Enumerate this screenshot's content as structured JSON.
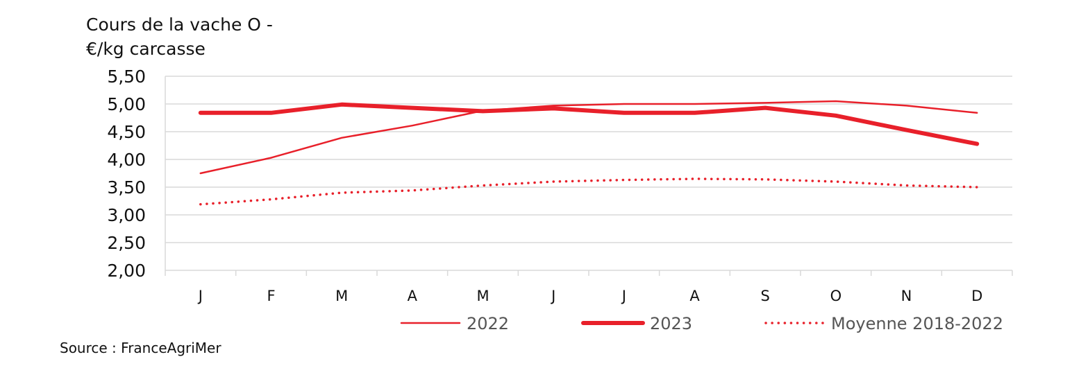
{
  "chart_data": {
    "type": "line",
    "title": "",
    "ylabel_lines": [
      "Cours de la vache O -",
      "€/kg carcasse"
    ],
    "xlabel": "",
    "categories": [
      "J",
      "F",
      "M",
      "A",
      "M",
      "J",
      "J",
      "A",
      "S",
      "O",
      "N",
      "D"
    ],
    "ylim": [
      2.0,
      5.5
    ],
    "yticks": [
      2.0,
      2.5,
      3.0,
      3.5,
      4.0,
      4.5,
      5.0,
      5.5
    ],
    "ytick_labels": [
      "2,00",
      "2,50",
      "3,00",
      "3,50",
      "4,00",
      "4,50",
      "5,00",
      "5,50"
    ],
    "grid": true,
    "legend_position": "bottom-right",
    "series": [
      {
        "name": "2022",
        "values": [
          3.75,
          4.03,
          4.39,
          4.61,
          4.88,
          4.97,
          5.0,
          5.0,
          5.02,
          5.05,
          4.97,
          4.84
        ],
        "color": "#e8202a",
        "style": "thin"
      },
      {
        "name": "2023",
        "values": [
          4.84,
          4.84,
          4.99,
          4.93,
          4.87,
          4.92,
          4.84,
          4.84,
          4.93,
          4.79,
          4.53,
          4.28
        ],
        "color": "#e8202a",
        "style": "thick"
      },
      {
        "name": "Moyenne 2018-2022",
        "values": [
          3.19,
          3.28,
          3.4,
          3.44,
          3.53,
          3.6,
          3.63,
          3.65,
          3.64,
          3.6,
          3.53,
          3.5
        ],
        "color": "#e8202a",
        "style": "dotted"
      }
    ]
  },
  "source": "Source : FranceAgriMer"
}
